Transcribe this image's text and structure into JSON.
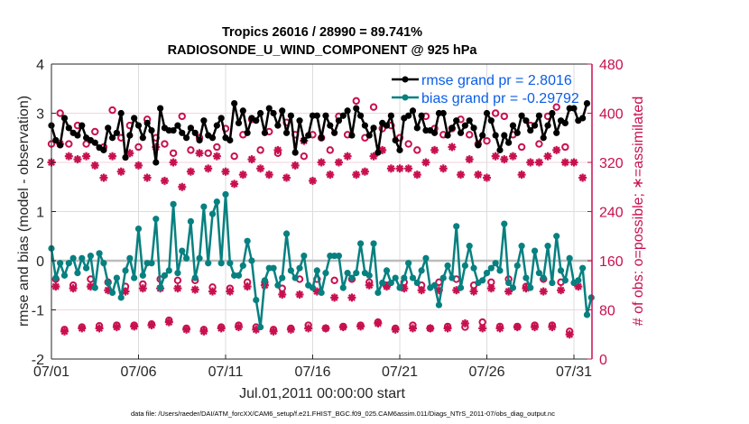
{
  "chart_data": {
    "type": "line",
    "title": "Tropics 26016 / 28990 = 89.741%",
    "subtitle": "RADIOSONDE_U_WIND_COMPONENT @ 925 hPa",
    "xlabel": "Jul.01,2011 00:00:00 start",
    "ylabel": "rmse and bias (model - observation)",
    "ylabel_right": "# of obs: o=possible; ∗=assimilated",
    "footnote": "data file: /Users/raeder/DAI/ATM_forcXX/CAM6_setup/f.e21.FHIST_BGC.f09_025.CAM6assim.011/Diags_NTrS_2011-07/obs_diag_output.nc",
    "x_units": "days since 07/01 00Z",
    "x_range": [
      0,
      31
    ],
    "x_ticks": [
      0,
      5,
      10,
      15,
      20,
      25,
      30
    ],
    "x_tick_labels": [
      "07/01",
      "07/06",
      "07/11",
      "07/16",
      "07/21",
      "07/26",
      "07/31"
    ],
    "ylim": [
      -2,
      4
    ],
    "y_ticks": [
      -2,
      -1,
      0,
      1,
      2,
      3,
      4
    ],
    "y_tick_labels": [
      "-2",
      "-1",
      "0",
      "1",
      "2",
      "3",
      "4"
    ],
    "ylim_right": [
      0,
      480
    ],
    "y_ticks_right": [
      0,
      80,
      160,
      240,
      320,
      400,
      480
    ],
    "y_tick_labels_right": [
      "0",
      "80",
      "160",
      "240",
      "320",
      "400",
      "480"
    ],
    "grid": true,
    "legend_position": "top-right",
    "legend": [
      "rmse grand pr = 2.8016",
      "bias grand pr = -0.29792"
    ],
    "time_step_hours": 6,
    "series": [
      {
        "name": "rmse grand pr = 2.8016",
        "color": "#000000",
        "axis": "left",
        "values": [
          2.75,
          2.45,
          2.35,
          2.9,
          2.7,
          2.6,
          2.55,
          2.75,
          2.5,
          2.45,
          2.4,
          2.3,
          2.25,
          2.7,
          2.5,
          2.6,
          3.0,
          2.1,
          2.55,
          2.9,
          2.75,
          2.5,
          2.8,
          2.65,
          2.0,
          3.1,
          2.7,
          2.65,
          2.65,
          2.75,
          2.6,
          2.5,
          2.7,
          2.6,
          2.45,
          2.85,
          2.55,
          2.5,
          2.75,
          2.9,
          2.5,
          2.45,
          3.2,
          2.8,
          3.05,
          2.6,
          2.9,
          2.85,
          3.0,
          2.6,
          3.1,
          3.0,
          2.75,
          3.05,
          2.6,
          2.95,
          2.2,
          2.85,
          2.45,
          2.55,
          2.95,
          2.95,
          2.5,
          2.95,
          2.75,
          2.6,
          2.85,
          2.95,
          3.05,
          2.55,
          3.1,
          2.95,
          2.75,
          2.55,
          2.7,
          2.2,
          2.8,
          2.75,
          2.95,
          2.45,
          2.25,
          2.9,
          2.95,
          3.05,
          2.7,
          2.95,
          2.65,
          2.65,
          2.6,
          3.0,
          3.0,
          2.55,
          2.7,
          2.85,
          2.6,
          2.75,
          2.85,
          2.7,
          2.35,
          2.55,
          3.0,
          2.85,
          2.55,
          2.25,
          2.55,
          2.4,
          2.75,
          2.6,
          2.95,
          2.85,
          2.65,
          2.75,
          2.95,
          2.5,
          2.75,
          3.0,
          2.6,
          2.85,
          2.8,
          3.1,
          3.1,
          2.85,
          2.9,
          3.2
        ]
      },
      {
        "name": "bias grand pr = -0.29792",
        "color": "#078080",
        "axis": "left",
        "values": [
          0.25,
          -0.35,
          -0.05,
          -0.3,
          -0.05,
          0.05,
          -0.25,
          0.05,
          -0.15,
          0.1,
          -0.55,
          0.15,
          -0.05,
          -0.45,
          -0.65,
          -0.35,
          -0.75,
          -0.2,
          0.05,
          -0.35,
          0.65,
          -0.3,
          -0.05,
          -0.05,
          0.85,
          -0.55,
          -0.3,
          -0.2,
          1.15,
          -0.25,
          0.2,
          0.05,
          0.8,
          -0.35,
          0.05,
          1.1,
          -0.05,
          0.95,
          1.2,
          -0.05,
          1.35,
          -0.05,
          -0.3,
          -0.3,
          -0.1,
          0.4,
          0.0,
          -0.8,
          -1.35,
          -0.4,
          -0.15,
          -0.15,
          -0.5,
          -0.35,
          0.55,
          -0.2,
          -0.35,
          -0.15,
          0.1,
          -0.5,
          -0.55,
          -0.2,
          -0.65,
          -0.25,
          0.1,
          0.1,
          0.1,
          -0.55,
          -0.25,
          -0.35,
          -0.25,
          0.35,
          -0.25,
          -0.3,
          0.35,
          -0.65,
          -0.45,
          -0.2,
          -0.45,
          -0.35,
          -0.55,
          -0.35,
          -0.05,
          -0.35,
          -0.45,
          -0.2,
          0.05,
          -0.55,
          -0.5,
          -0.9,
          -0.35,
          -0.1,
          -0.35,
          0.7,
          -0.55,
          -0.1,
          0.3,
          -0.15,
          -0.45,
          -0.4,
          -0.25,
          -0.15,
          -0.05,
          -0.2,
          0.75,
          -0.45,
          -0.55,
          -0.1,
          0.3,
          -0.35,
          -0.55,
          0.2,
          -0.25,
          -0.35,
          0.3,
          -0.45,
          0.5,
          -0.2,
          -0.4,
          0.05,
          -0.45,
          -0.4,
          -0.15,
          -1.1,
          -0.75,
          -0.65,
          -0.05,
          -1.2
        ]
      },
      {
        "name": "possible (o)",
        "color": "#c8104f",
        "axis": "right",
        "marker": "circle",
        "values": [
          350,
          130,
          400,
          null,
          350,
          120,
          380,
          null,
          350,
          130,
          370,
          null,
          345,
          125,
          405,
          null,
          360,
          118,
          380,
          null,
          345,
          122,
          390,
          null,
          360,
          130,
          350,
          null,
          335,
          128,
          395,
          null,
          340,
          128,
          360,
          null,
          335,
          117,
          345,
          null,
          375,
          115,
          330,
          null,
          365,
          125,
          390,
          null,
          340,
          125,
          370,
          null,
          335,
          115,
          385,
          null,
          365,
          130,
          330,
          null,
          365,
          130,
          360,
          null,
          340,
          128,
          395,
          null,
          365,
          130,
          420,
          null,
          360,
          125,
          410,
          null,
          375,
          120,
          380,
          null,
          360,
          125,
          350,
          null,
          340,
          120,
          395,
          null,
          375,
          125,
          365,
          null,
          375,
          130,
          390,
          null,
          365,
          120,
          350,
          null,
          355,
          125,
          400,
          null,
          395,
          130,
          365,
          null,
          345,
          118,
          380,
          null,
          350,
          130,
          395,
          null,
          410,
          125,
          345
        ]
      },
      {
        "name": "possible low-count (o)",
        "color": "#c8104f",
        "axis": "right",
        "marker": "circle",
        "values": [
          null,
          null,
          null,
          48,
          null,
          null,
          null,
          52,
          null,
          null,
          null,
          54,
          null,
          null,
          null,
          55,
          null,
          null,
          null,
          55,
          null,
          null,
          null,
          57,
          null,
          null,
          null,
          63,
          null,
          null,
          null,
          50,
          null,
          null,
          null,
          48,
          null,
          null,
          null,
          52,
          null,
          null,
          null,
          55,
          null,
          null,
          null,
          52,
          null,
          null,
          null,
          48,
          null,
          null,
          null,
          50,
          null,
          null,
          null,
          55,
          null,
          null,
          null,
          50,
          null,
          null,
          null,
          53,
          null,
          null,
          null,
          55,
          null,
          null,
          null,
          60,
          null,
          null,
          null,
          50,
          null,
          null,
          null,
          55,
          null,
          null,
          null,
          50,
          null,
          null,
          null,
          53,
          null,
          null,
          null,
          52,
          null,
          null,
          null,
          60,
          null,
          null,
          null,
          53,
          null,
          null,
          null,
          53,
          null,
          null,
          null,
          55,
          null,
          null,
          null,
          55,
          null,
          null,
          null,
          45,
          null,
          null,
          null
        ]
      },
      {
        "name": "assimilated (∗)",
        "color": "#c8104f",
        "axis": "right",
        "marker": "star",
        "values": [
          320,
          118,
          350,
          45,
          330,
          115,
          325,
          50,
          330,
          118,
          315,
          50,
          295,
          112,
          330,
          52,
          305,
          110,
          335,
          53,
          315,
          115,
          295,
          55,
          345,
          115,
          290,
          60,
          320,
          115,
          280,
          48,
          305,
          113,
          335,
          45,
          310,
          110,
          330,
          50,
          305,
          110,
          285,
          52,
          300,
          118,
          325,
          48,
          310,
          120,
          300,
          45,
          340,
          105,
          295,
          48,
          315,
          105,
          355,
          50,
          290,
          110,
          320,
          50,
          300,
          100,
          320,
          52,
          330,
          100,
          300,
          53,
          305,
          120,
          330,
          58,
          340,
          118,
          310,
          48,
          310,
          115,
          310,
          50,
          300,
          112,
          320,
          50,
          340,
          112,
          310,
          50,
          345,
          112,
          300,
          58,
          325,
          110,
          300,
          50,
          295,
          115,
          330,
          50,
          325,
          110,
          330,
          52,
          300,
          115,
          320,
          52,
          320,
          110,
          330,
          52,
          340,
          112,
          320,
          40,
          320,
          118,
          295
        ]
      }
    ]
  }
}
